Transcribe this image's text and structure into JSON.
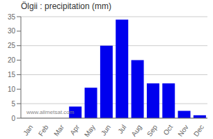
{
  "chart_data": {
    "type": "bar",
    "title": "Ölgii : precipitation (mm)",
    "categories": [
      "Jan",
      "Feb",
      "Mar",
      "Apr",
      "May",
      "Jun",
      "Jul",
      "Aug",
      "Sep",
      "Oct",
      "Nov",
      "Dec"
    ],
    "values": [
      0,
      0,
      0,
      4,
      10.5,
      25,
      34,
      20,
      12,
      12,
      2.5,
      1
    ],
    "color": "#0000ee",
    "ylim": [
      0,
      35
    ],
    "yticks": [
      0,
      5,
      10,
      15,
      20,
      25,
      30,
      35
    ],
    "grid": true,
    "annotations": [
      "www.allmetsat.com"
    ]
  }
}
